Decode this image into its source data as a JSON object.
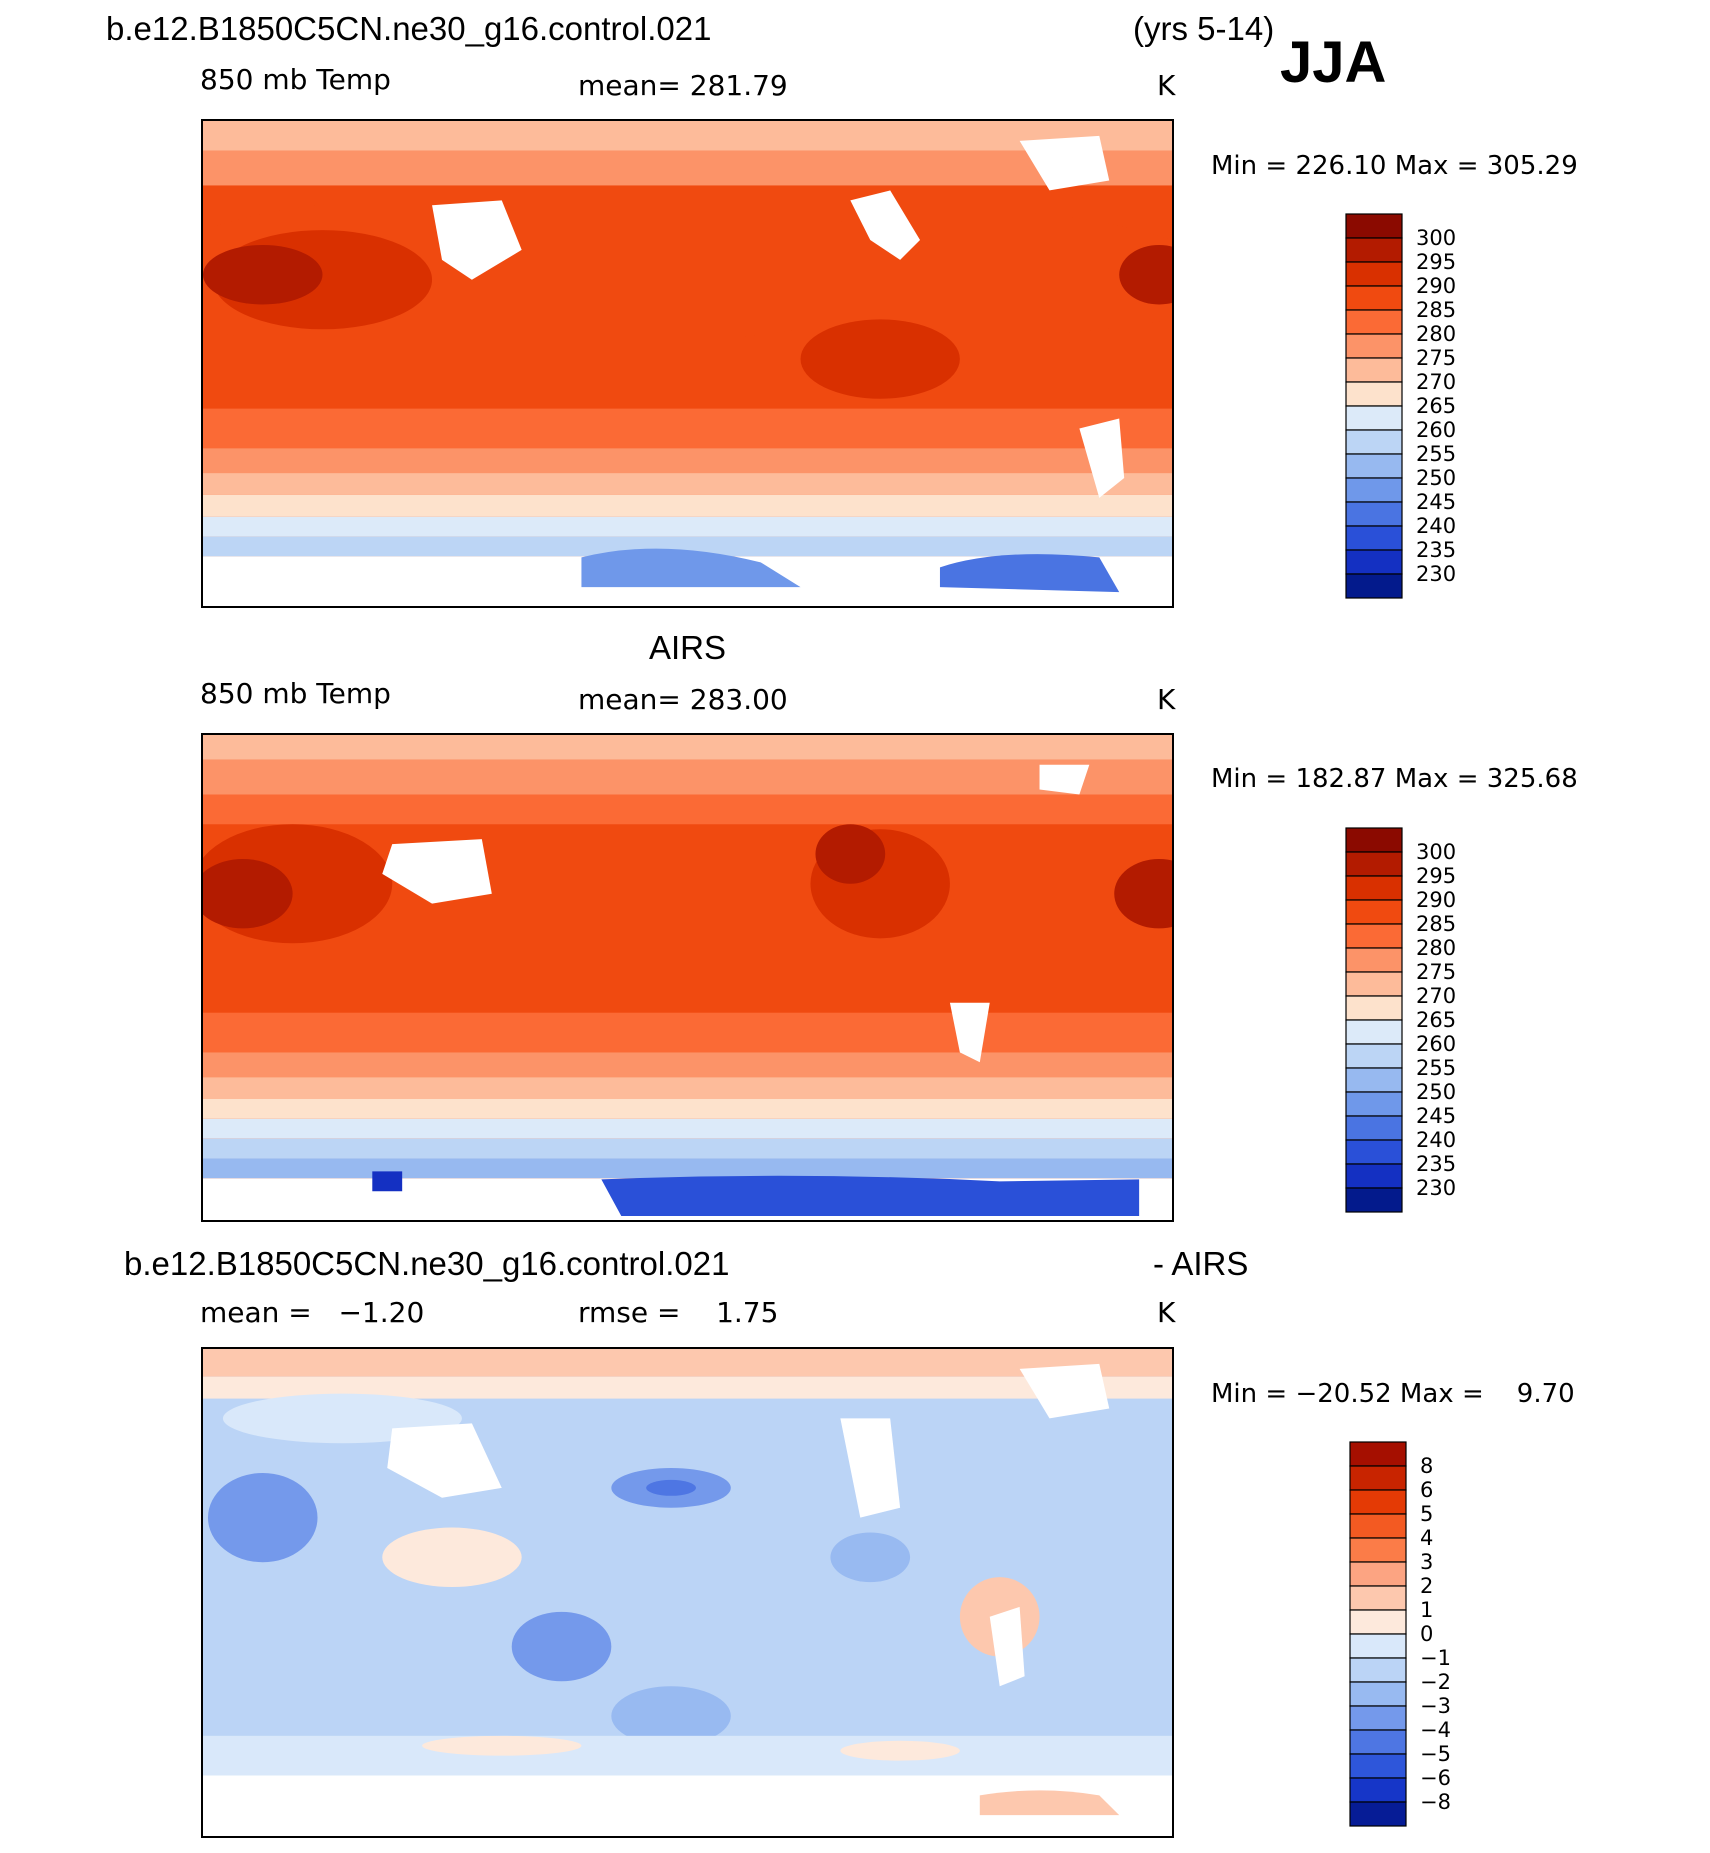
{
  "page": {
    "case_title": "b.e12.B1850C5CN.ne30_g16.control.021",
    "years": "(yrs 5-14)",
    "season": "JJA"
  },
  "panels": [
    {
      "id": "model",
      "heading": "",
      "left_label": "850 mb Temp",
      "mid_label": "mean= 281.79",
      "units": "K",
      "minmax": "Min = 226.10 Max = 305.29",
      "palette": "temp"
    },
    {
      "id": "obs",
      "heading": "AIRS",
      "left_label": "850 mb Temp",
      "mid_label": "mean= 283.00",
      "units": "K",
      "minmax": "Min = 182.87 Max = 325.68",
      "palette": "temp"
    },
    {
      "id": "diff",
      "heading": "b.e12.B1850C5CN.ne30_g16.control.021",
      "heading_right": "- AIRS",
      "left_label": "mean =   −1.20",
      "mid_label": "rmse =    1.75",
      "units": "K",
      "minmax": "Min = −20.52 Max =    9.70",
      "palette": "diff"
    }
  ],
  "colorbars": {
    "temp": {
      "labels": [
        "300",
        "295",
        "290",
        "285",
        "280",
        "275",
        "270",
        "265",
        "260",
        "255",
        "250",
        "245",
        "240",
        "235",
        "230"
      ],
      "colors": [
        "#8b0a00",
        "#b31b00",
        "#d93000",
        "#f04a10",
        "#fb6a35",
        "#fc9368",
        "#fdbb9a",
        "#fde2cc",
        "#dceaf9",
        "#bcd5f5",
        "#97b9f0",
        "#6f98ea",
        "#4a74e2",
        "#2a50d8",
        "#1430c2",
        "#031a8c"
      ]
    },
    "diff": {
      "labels": [
        "8",
        "6",
        "5",
        "4",
        "3",
        "2",
        "1",
        "0",
        "−1",
        "−2",
        "−3",
        "−4",
        "−5",
        "−6",
        "−8"
      ],
      "colors": [
        "#a50f00",
        "#c82400",
        "#e43a05",
        "#f35a22",
        "#fb7c48",
        "#fca482",
        "#fdc8ae",
        "#fde9dc",
        "#d9e8fa",
        "#bbd4f6",
        "#98baf1",
        "#7499eb",
        "#4e76e3",
        "#2e56da",
        "#1636c8",
        "#061c96"
      ]
    }
  }
}
